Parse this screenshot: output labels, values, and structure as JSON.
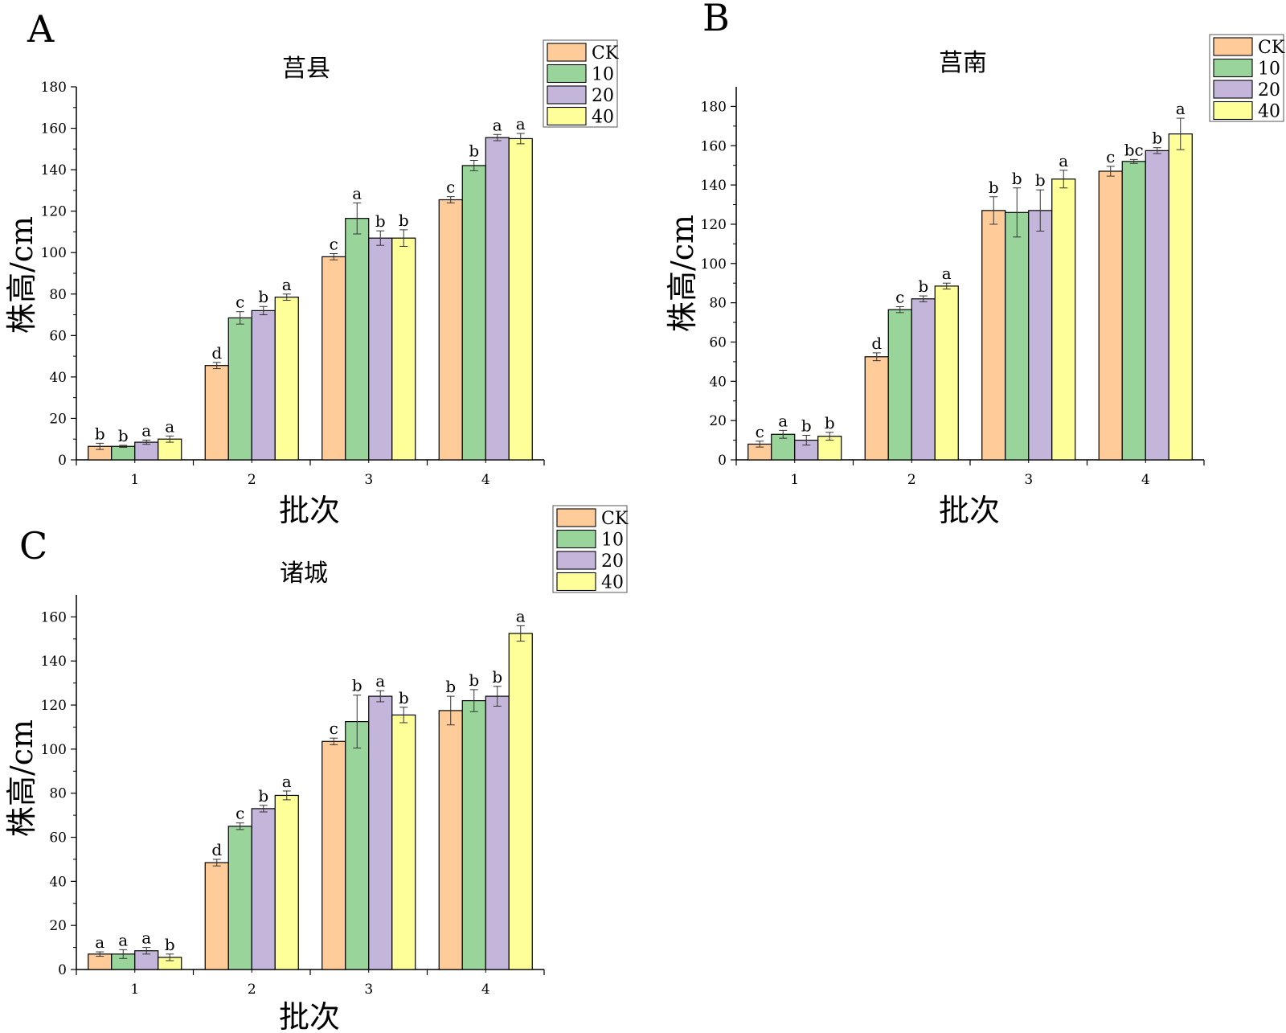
{
  "chart_data": [
    {
      "type": "bar",
      "panel": "A",
      "title": "莒县",
      "xlabel": "批次",
      "ylabel": "株高/cm",
      "categories": [
        "1",
        "2",
        "3",
        "4"
      ],
      "ylim": [
        0,
        180
      ],
      "yticks": [
        "0",
        "20",
        "40",
        "60",
        "80",
        "100",
        "120",
        "140",
        "160",
        "180"
      ],
      "legend_position": "top-right",
      "series": [
        {
          "name": "CK",
          "color": "#FFCC99",
          "values": [
            6.5,
            45.5,
            98,
            125.5
          ],
          "errors": [
            1.5,
            1.5,
            1.5,
            1.5
          ],
          "letters": [
            "b",
            "d",
            "c",
            "c"
          ]
        },
        {
          "name": "10",
          "color": "#99D49B",
          "values": [
            6.5,
            68.5,
            116.5,
            142
          ],
          "errors": [
            0.5,
            3,
            7.5,
            2.5
          ],
          "letters": [
            "b",
            "c",
            "a",
            "b"
          ]
        },
        {
          "name": "20",
          "color": "#C4B5DA",
          "values": [
            8.5,
            72,
            107,
            155.5
          ],
          "errors": [
            1,
            2,
            3.5,
            1.5
          ],
          "letters": [
            "a",
            "b",
            "b",
            "a"
          ]
        },
        {
          "name": "40",
          "color": "#FFFF99",
          "values": [
            10,
            78.5,
            107,
            155
          ],
          "errors": [
            1.5,
            1.5,
            4,
            2.5
          ],
          "letters": [
            "a",
            "a",
            "b",
            "a"
          ]
        }
      ]
    },
    {
      "type": "bar",
      "panel": "B",
      "title": "莒南",
      "xlabel": "批次",
      "ylabel": "株高/cm",
      "categories": [
        "1",
        "2",
        "3",
        "4"
      ],
      "ylim": [
        0,
        190
      ],
      "yticks": [
        "0",
        "20",
        "40",
        "60",
        "80",
        "100",
        "120",
        "140",
        "160",
        "180"
      ],
      "legend_position": "top-right",
      "series": [
        {
          "name": "CK",
          "color": "#FFCC99",
          "values": [
            8,
            52.5,
            127,
            147
          ],
          "errors": [
            1.5,
            2,
            7,
            2.5
          ],
          "letters": [
            "c",
            "d",
            "b",
            "c"
          ]
        },
        {
          "name": "10",
          "color": "#99D49B",
          "values": [
            13,
            76.5,
            126,
            152
          ],
          "errors": [
            2,
            1.5,
            12.5,
            1
          ],
          "letters": [
            "a",
            "c",
            "b",
            "bc"
          ]
        },
        {
          "name": "20",
          "color": "#C4B5DA",
          "values": [
            10,
            82,
            127,
            157.5
          ],
          "errors": [
            2.5,
            1.5,
            10.5,
            1.5
          ],
          "letters": [
            "b",
            "b",
            "b",
            "b"
          ]
        },
        {
          "name": "40",
          "color": "#FFFF99",
          "values": [
            12,
            88.5,
            143,
            166
          ],
          "errors": [
            2,
            1.5,
            4.5,
            8
          ],
          "letters": [
            "b",
            "a",
            "a",
            "a"
          ]
        }
      ]
    },
    {
      "type": "bar",
      "panel": "C",
      "title": "诸城",
      "xlabel": "批次",
      "ylabel": "株高/cm",
      "categories": [
        "1",
        "2",
        "3",
        "4"
      ],
      "ylim": [
        0,
        170
      ],
      "yticks": [
        "0",
        "20",
        "40",
        "60",
        "80",
        "100",
        "120",
        "140",
        "160"
      ],
      "legend_position": "top-right",
      "series": [
        {
          "name": "CK",
          "color": "#FFCC99",
          "values": [
            7,
            48.5,
            103.5,
            117.5
          ],
          "errors": [
            1,
            1.5,
            1.5,
            6.5
          ],
          "letters": [
            "a",
            "d",
            "c",
            "b"
          ]
        },
        {
          "name": "10",
          "color": "#99D49B",
          "values": [
            7,
            65,
            112.5,
            122
          ],
          "errors": [
            2,
            1.5,
            12,
            5
          ],
          "letters": [
            "a",
            "c",
            "b",
            "b"
          ]
        },
        {
          "name": "20",
          "color": "#C4B5DA",
          "values": [
            8.5,
            73,
            124,
            124
          ],
          "errors": [
            1.5,
            1.5,
            2.5,
            4.5
          ],
          "letters": [
            "a",
            "b",
            "a",
            "b"
          ]
        },
        {
          "name": "40",
          "color": "#FFFF99",
          "values": [
            5.5,
            79,
            115.5,
            152.5
          ],
          "errors": [
            1.5,
            2,
            3.5,
            3.5
          ],
          "letters": [
            "b",
            "a",
            "b",
            "a"
          ]
        }
      ]
    }
  ]
}
